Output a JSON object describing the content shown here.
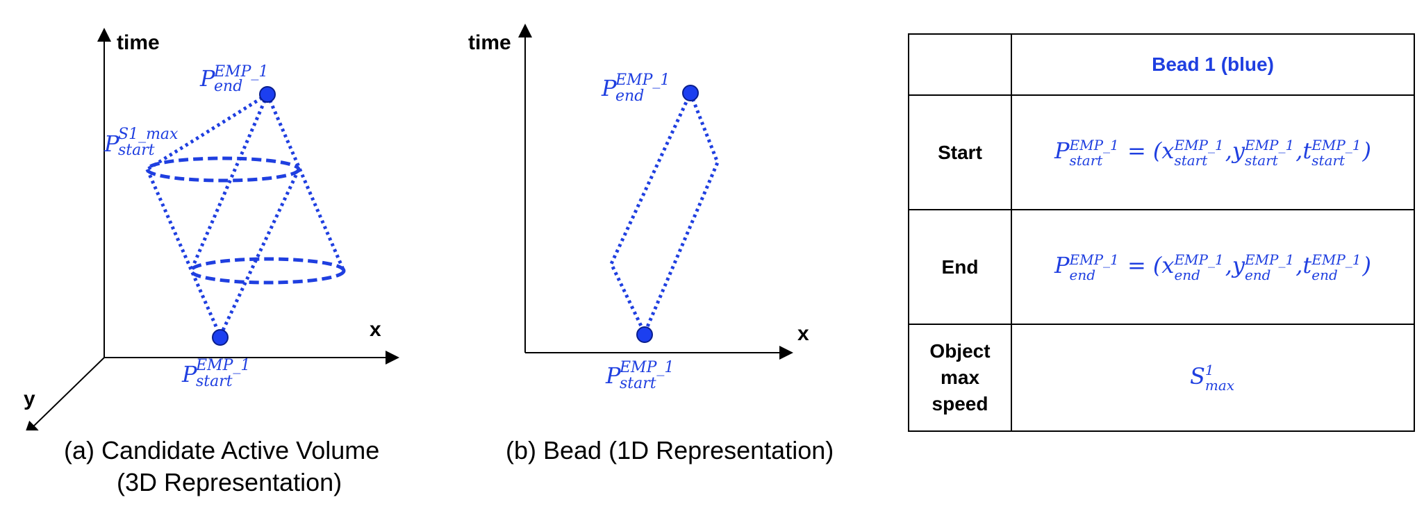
{
  "panel_a": {
    "axis_time": "time",
    "axis_x": "x",
    "axis_y": "y",
    "p_end": {
      "base": "P",
      "sup": "EMP_1",
      "sub": "end"
    },
    "p_start_s1": {
      "base": "P",
      "sup": "S1_max",
      "sub": "start"
    },
    "p_start": {
      "base": "P",
      "sup": "EMP_1",
      "sub": "start"
    },
    "caption_line1": "(a)  Candidate Active Volume",
    "caption_line2": "(3D Representation)"
  },
  "panel_b": {
    "axis_time": "time",
    "axis_x": "x",
    "p_end": {
      "base": "P",
      "sup": "EMP_1",
      "sub": "end"
    },
    "p_start": {
      "base": "P",
      "sup": "EMP_1",
      "sub": "start"
    },
    "caption": "(b)  Bead (1D Representation)"
  },
  "table": {
    "header_empty": "",
    "header_bead": "Bead 1 (blue)",
    "row_start": {
      "label": "Start",
      "lhs_base": "P",
      "lhs_sup": "EMP_1",
      "lhs_sub": "start",
      "eq": " = (",
      "x_base": "x",
      "y_base": "y",
      "t_base": "t",
      "sup": "EMP_1",
      "sub": "start",
      "comma": ",",
      "close": ")"
    },
    "row_end": {
      "label": "End",
      "lhs_base": "P",
      "lhs_sup": "EMP_1",
      "lhs_sub": "end",
      "eq": " = (",
      "x_base": "x",
      "y_base": "y",
      "t_base": "t",
      "sup": "EMP_1",
      "sub": "end",
      "comma": ",",
      "close": ")"
    },
    "row_speed": {
      "label_line1": "Object",
      "label_line2": "max",
      "label_line3": "speed",
      "base": "S",
      "sup": "1",
      "sub": "max"
    }
  },
  "colors": {
    "accent": "#1f3fe0",
    "point_fill": "#1c3ff0",
    "axis": "#000000"
  }
}
